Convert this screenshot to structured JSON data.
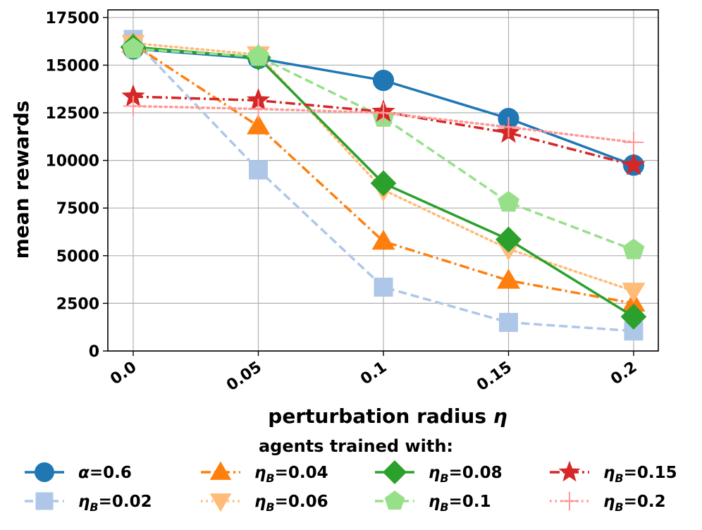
{
  "chart_data": {
    "type": "line",
    "title": "",
    "xlabel": "perturbation radius η",
    "ylabel": "mean rewards",
    "x": [
      "0.0",
      "0.05",
      "0.1",
      "0.15",
      "0.2"
    ],
    "ylim": [
      0,
      17900
    ],
    "yticks": [
      "0",
      "2500",
      "5000",
      "7500",
      "10000",
      "12500",
      "15000",
      "17500"
    ],
    "grid": true,
    "legend_title": "agents trained with:",
    "legend_position": "bottom",
    "series": [
      {
        "name": "α=0.6",
        "values": [
          15850,
          15350,
          14200,
          12200,
          9750
        ],
        "color": "#1f77b4",
        "dash": "solid",
        "marker": "circle"
      },
      {
        "name": "ηB=0.02",
        "values": [
          16350,
          9500,
          3350,
          1500,
          1050
        ],
        "color": "#aec7e8",
        "dash": "dashed",
        "marker": "square"
      },
      {
        "name": "ηB=0.04",
        "values": [
          16100,
          11800,
          5750,
          3700,
          2500
        ],
        "color": "#ff7f0e",
        "dash": "dashdot",
        "marker": "triangle-up"
      },
      {
        "name": "ηB=0.06",
        "values": [
          16150,
          15550,
          8450,
          5350,
          3150
        ],
        "color": "#ffbb78",
        "dash": "dotted",
        "marker": "triangle-down"
      },
      {
        "name": "ηB=0.08",
        "values": [
          15950,
          15400,
          8800,
          5850,
          1800
        ],
        "color": "#2ca02c",
        "dash": "solid",
        "marker": "diamond"
      },
      {
        "name": "ηB=0.1",
        "values": [
          15850,
          15450,
          12250,
          7800,
          5300
        ],
        "color": "#98df8a",
        "dash": "dashed",
        "marker": "pentagon"
      },
      {
        "name": "ηB=0.15",
        "values": [
          13350,
          13150,
          12550,
          11450,
          9750
        ],
        "color": "#d62728",
        "dash": "dashdot",
        "marker": "star"
      },
      {
        "name": "ηB=0.2",
        "values": [
          12850,
          12700,
          12500,
          11750,
          10950
        ],
        "color": "#ff9896",
        "dash": "dotted",
        "marker": "plus"
      }
    ],
    "legend_labels": [
      {
        "prefix": "α",
        "sub": "",
        "suffix": "=0.6"
      },
      {
        "prefix": "η",
        "sub": "B",
        "suffix": "=0.02"
      },
      {
        "prefix": "η",
        "sub": "B",
        "suffix": "=0.04"
      },
      {
        "prefix": "η",
        "sub": "B",
        "suffix": "=0.06"
      },
      {
        "prefix": "η",
        "sub": "B",
        "suffix": "=0.08"
      },
      {
        "prefix": "η",
        "sub": "B",
        "suffix": "=0.1"
      },
      {
        "prefix": "η",
        "sub": "B",
        "suffix": "=0.15"
      },
      {
        "prefix": "η",
        "sub": "B",
        "suffix": "=0.2"
      }
    ]
  }
}
